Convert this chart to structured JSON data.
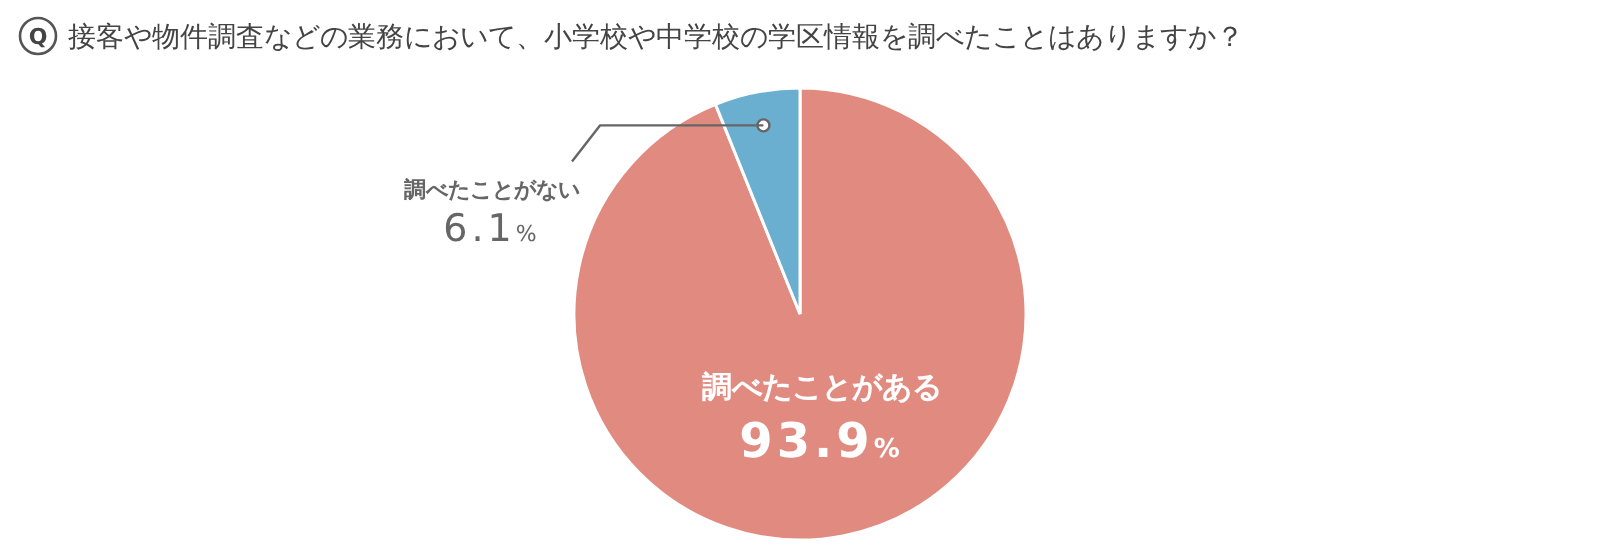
{
  "chart_data": {
    "type": "pie",
    "title": "接客や物件調査などの業務において、小学校や中学校の学区情報を調べたことはありますか？",
    "annotations": [
      "Q"
    ],
    "categories": [
      "調べたことがある",
      "調べたことがない"
    ],
    "values": [
      93.9,
      6.1
    ],
    "colors": [
      "#e08a80",
      "#6aaed0"
    ],
    "value_labels": [
      "93.9%",
      "6.1%"
    ]
  }
}
